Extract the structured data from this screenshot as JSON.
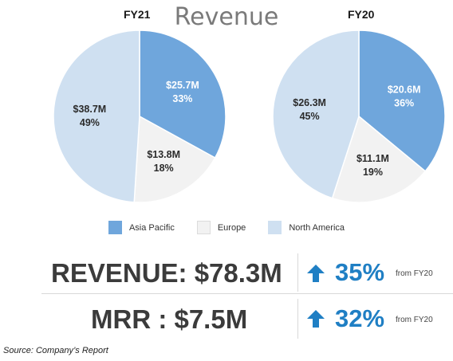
{
  "title": "Revenue",
  "colors": {
    "asia_pacific": "#6fa6dc",
    "europe": "#f2f2f2",
    "north_america": "#cfe0f1",
    "accent": "#1f7fc4"
  },
  "legend": [
    "Asia Pacific",
    "Europe",
    "North America"
  ],
  "chart_data": [
    {
      "type": "pie",
      "title": "FY21",
      "slices": [
        {
          "name": "Asia Pacific",
          "label": "$25.7M",
          "pct_label": "33%",
          "value": 33
        },
        {
          "name": "Europe",
          "label": "$13.8M",
          "pct_label": "18%",
          "value": 18
        },
        {
          "name": "North America",
          "label": "$38.7M",
          "pct_label": "49%",
          "value": 49
        }
      ]
    },
    {
      "type": "pie",
      "title": "FY20",
      "slices": [
        {
          "name": "Asia Pacific",
          "label": "$20.6M",
          "pct_label": "36%",
          "value": 36
        },
        {
          "name": "Europe",
          "label": "$11.1M",
          "pct_label": "19%",
          "value": 19
        },
        {
          "name": "North America",
          "label": "$26.3M",
          "pct_label": "45%",
          "value": 45
        }
      ]
    }
  ],
  "metrics": [
    {
      "label": "REVENUE: $78.3M",
      "change": "35%",
      "from": "from FY20",
      "icon": "up-arrow-icon"
    },
    {
      "label": "MRR : $7.5M",
      "change": "32%",
      "from": "from FY20",
      "icon": "up-arrow-icon"
    }
  ],
  "source": "Source: Company’s Report"
}
